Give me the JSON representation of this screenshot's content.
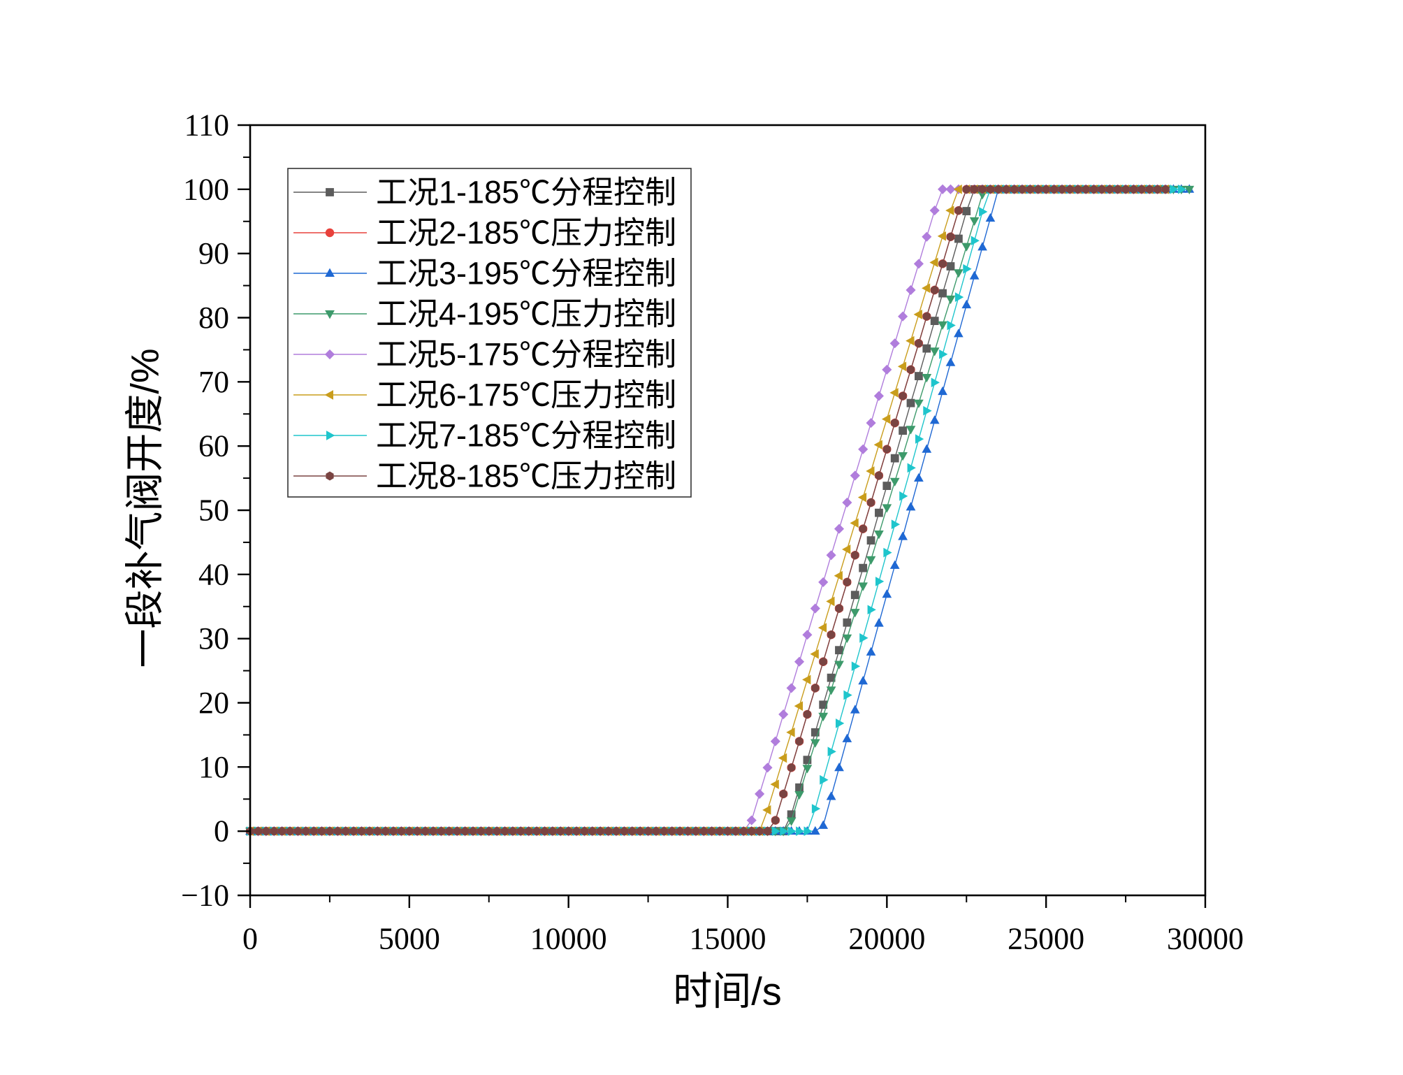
{
  "chart_data": {
    "type": "line",
    "title": "",
    "xlabel": "时间/s",
    "ylabel": "一段补气阀开度/%",
    "xlim": [
      0,
      30000
    ],
    "ylim": [
      -10,
      110
    ],
    "xticks": [
      0,
      5000,
      10000,
      15000,
      20000,
      25000,
      30000
    ],
    "xtick_labels": [
      "0",
      "5000",
      "10000",
      "15000",
      "20000",
      "25000",
      "30000"
    ],
    "yticks": [
      -10,
      0,
      10,
      20,
      30,
      40,
      50,
      60,
      70,
      80,
      90,
      100,
      110
    ],
    "ytick_labels": [
      "−10",
      "0",
      "10",
      "20",
      "30",
      "40",
      "50",
      "60",
      "70",
      "80",
      "90",
      "100",
      "110"
    ],
    "grid": false,
    "legend_position": "top-left",
    "x": [
      0,
      250,
      500,
      750,
      1000,
      1250,
      1500,
      1750,
      2000,
      2250,
      2500,
      2750,
      3000,
      3250,
      3500,
      3750,
      4000,
      4250,
      4500,
      4750,
      5000,
      5250,
      5500,
      5750,
      6000,
      6250,
      6500,
      6750,
      7000,
      7250,
      7500,
      7750,
      8000,
      8250,
      8500,
      8750,
      9000,
      9250,
      9500,
      9750,
      10000,
      10250,
      10500,
      10750,
      11000,
      11250,
      11500,
      11750,
      12000,
      12250,
      12500,
      12750,
      13000,
      13250,
      13500,
      13750,
      14000,
      14250,
      14500,
      14750,
      15000,
      15250,
      15500,
      15750,
      16000,
      16250,
      16500,
      16750,
      17000,
      17250,
      17500,
      17750,
      18000,
      18250,
      18500,
      18750,
      19000,
      19250,
      19500,
      19750,
      20000,
      20250,
      20500,
      20750,
      21000,
      21250,
      21500,
      21750,
      22000,
      22250,
      22500,
      22750,
      23000,
      23250,
      23500,
      23750,
      24000,
      24250,
      24500,
      24750,
      25000,
      25250,
      25500,
      25750,
      26000,
      26250,
      26500,
      26750,
      27000,
      27250,
      27500,
      27750,
      28000,
      28250,
      28500,
      28750,
      29000,
      29250,
      29500
    ],
    "series": [
      {
        "name": "工况1-185℃分程控制",
        "color": "#5c5c5c",
        "marker": "square",
        "values": [
          0,
          0,
          0,
          0,
          0,
          0,
          0,
          0,
          0,
          0,
          0,
          0,
          0,
          0,
          0,
          0,
          0,
          0,
          0,
          0,
          0,
          0,
          0,
          0,
          0,
          0,
          0,
          0,
          0,
          0,
          0,
          0,
          0,
          0,
          0,
          0,
          0,
          0,
          0,
          0,
          0,
          0,
          0,
          0,
          0,
          0,
          0,
          0,
          0,
          0,
          0,
          0,
          0,
          0,
          0,
          0,
          0,
          0,
          0,
          0,
          0,
          0,
          0,
          0,
          0,
          0,
          0,
          0,
          2.6,
          6.8,
          11.1,
          15.4,
          19.7,
          23.9,
          28.2,
          32.5,
          36.8,
          41.0,
          45.3,
          49.6,
          53.8,
          58.1,
          62.4,
          66.7,
          70.9,
          75.2,
          79.5,
          83.8,
          88.0,
          92.3,
          96.6,
          100,
          100,
          100,
          100,
          100,
          100,
          100,
          100,
          100,
          100,
          100,
          100,
          100,
          100,
          100,
          100,
          100,
          100,
          100,
          100,
          100,
          100,
          100,
          100,
          100,
          null,
          null,
          null
        ]
      },
      {
        "name": "工况2-185℃压力控制",
        "color": "#e8413b",
        "marker": "circle",
        "values": [
          0,
          0,
          0,
          0,
          0,
          0,
          0,
          0,
          0,
          0,
          0,
          0,
          0,
          0,
          0,
          0,
          0,
          0,
          0,
          0,
          0,
          0,
          0,
          0,
          0,
          0,
          0,
          0,
          0,
          0,
          0,
          0,
          0,
          0,
          0,
          0,
          0,
          0,
          0,
          0,
          0,
          0,
          0,
          0,
          0,
          0,
          0,
          0,
          0,
          0,
          0,
          0,
          0,
          0,
          0,
          0,
          0,
          0,
          0,
          0,
          0,
          0,
          0,
          0,
          0,
          0,
          1.7,
          5.8,
          9.9,
          14.0,
          18.2,
          22.3,
          26.4,
          30.6,
          34.7,
          38.8,
          43.0,
          47.1,
          51.2,
          55.4,
          59.5,
          63.6,
          67.8,
          71.9,
          76.0,
          80.2,
          84.3,
          88.4,
          92.6,
          96.7,
          100,
          100,
          100,
          100,
          100,
          100,
          100,
          100,
          100,
          100,
          100,
          100,
          100,
          100,
          100,
          100,
          100,
          100,
          100,
          100,
          100,
          100,
          100,
          100,
          100,
          100,
          null,
          null,
          null
        ]
      },
      {
        "name": "工况3-195℃分程控制",
        "color": "#1f68d3",
        "marker": "triangle-up",
        "values": [
          0,
          0,
          0,
          0,
          0,
          0,
          0,
          0,
          0,
          0,
          0,
          0,
          0,
          0,
          0,
          0,
          0,
          0,
          0,
          0,
          0,
          0,
          0,
          0,
          0,
          0,
          0,
          0,
          0,
          0,
          0,
          0,
          0,
          0,
          0,
          0,
          0,
          0,
          0,
          0,
          0,
          0,
          0,
          0,
          0,
          0,
          0,
          0,
          0,
          0,
          0,
          0,
          0,
          0,
          0,
          0,
          0,
          0,
          0,
          0,
          0,
          0,
          0,
          0,
          0,
          0,
          0,
          0,
          0,
          0,
          0,
          0,
          0.9,
          5.4,
          9.9,
          14.4,
          18.9,
          23.4,
          27.9,
          32.4,
          36.9,
          41.4,
          45.9,
          50.5,
          55.0,
          59.5,
          64.0,
          68.5,
          73.0,
          77.5,
          82.0,
          86.5,
          91.0,
          95.5,
          100,
          100,
          100,
          100,
          100,
          100,
          100,
          100,
          100,
          100,
          100,
          100,
          100,
          100,
          100,
          100,
          100,
          100,
          100,
          100,
          100,
          100,
          100,
          100,
          100
        ]
      },
      {
        "name": "工况4-195℃压力控制",
        "color": "#3d9a6b",
        "marker": "triangle-down",
        "values": [
          0,
          0,
          0,
          0,
          0,
          0,
          0,
          0,
          0,
          0,
          0,
          0,
          0,
          0,
          0,
          0,
          0,
          0,
          0,
          0,
          0,
          0,
          0,
          0,
          0,
          0,
          0,
          0,
          0,
          0,
          0,
          0,
          0,
          0,
          0,
          0,
          0,
          0,
          0,
          0,
          0,
          0,
          0,
          0,
          0,
          0,
          0,
          0,
          0,
          0,
          0,
          0,
          0,
          0,
          0,
          0,
          0,
          0,
          0,
          0,
          0,
          0,
          0,
          0,
          0,
          0,
          0,
          0,
          1.6,
          5.7,
          9.8,
          13.8,
          17.9,
          22.0,
          26.0,
          30.1,
          34.1,
          38.2,
          42.3,
          46.3,
          50.4,
          54.5,
          58.5,
          62.6,
          66.7,
          70.7,
          74.8,
          78.9,
          82.9,
          87.0,
          91.1,
          95.1,
          99.2,
          100,
          100,
          100,
          100,
          100,
          100,
          100,
          100,
          100,
          100,
          100,
          100,
          100,
          100,
          100,
          100,
          100,
          100,
          100,
          100,
          100,
          100,
          100,
          100,
          100,
          100
        ]
      },
      {
        "name": "工况5-175℃分程控制",
        "color": "#b07ddc",
        "marker": "diamond",
        "values": [
          0,
          0,
          0,
          0,
          0,
          0,
          0,
          0,
          0,
          0,
          0,
          0,
          0,
          0,
          0,
          0,
          0,
          0,
          0,
          0,
          0,
          0,
          0,
          0,
          0,
          0,
          0,
          0,
          0,
          0,
          0,
          0,
          0,
          0,
          0,
          0,
          0,
          0,
          0,
          0,
          0,
          0,
          0,
          0,
          0,
          0,
          0,
          0,
          0,
          0,
          0,
          0,
          0,
          0,
          0,
          0,
          0,
          0,
          0,
          0,
          0,
          0,
          0,
          1.7,
          5.8,
          9.9,
          14.0,
          18.2,
          22.3,
          26.4,
          30.6,
          34.7,
          38.8,
          43.0,
          47.1,
          51.2,
          55.4,
          59.5,
          63.6,
          67.8,
          71.9,
          76.0,
          80.2,
          84.3,
          88.4,
          92.6,
          96.7,
          100,
          100,
          100,
          100,
          100,
          100,
          100,
          100,
          100,
          100,
          100,
          100,
          100,
          100,
          100,
          100,
          100,
          100,
          100,
          100,
          100,
          100,
          100,
          100,
          100,
          100,
          100,
          100,
          100,
          null,
          null,
          null
        ]
      },
      {
        "name": "工况6-175℃压力控制",
        "color": "#c99d1c",
        "marker": "triangle-left",
        "values": [
          0,
          0,
          0,
          0,
          0,
          0,
          0,
          0,
          0,
          0,
          0,
          0,
          0,
          0,
          0,
          0,
          0,
          0,
          0,
          0,
          0,
          0,
          0,
          0,
          0,
          0,
          0,
          0,
          0,
          0,
          0,
          0,
          0,
          0,
          0,
          0,
          0,
          0,
          0,
          0,
          0,
          0,
          0,
          0,
          0,
          0,
          0,
          0,
          0,
          0,
          0,
          0,
          0,
          0,
          0,
          0,
          0,
          0,
          0,
          0,
          0,
          0,
          0,
          0,
          0,
          3.3,
          7.3,
          11.4,
          15.4,
          19.5,
          23.6,
          27.6,
          31.7,
          35.8,
          39.8,
          43.9,
          48.0,
          52.0,
          56.1,
          60.2,
          64.2,
          68.3,
          72.4,
          76.4,
          80.5,
          84.6,
          88.6,
          92.7,
          96.7,
          100,
          100,
          100,
          100,
          100,
          100,
          100,
          100,
          100,
          100,
          100,
          100,
          100,
          100,
          100,
          100,
          100,
          100,
          100,
          100,
          100,
          100,
          100,
          100,
          100,
          100,
          100,
          null,
          null,
          null
        ]
      },
      {
        "name": "工况7-185℃分程控制",
        "color": "#1fc5cc",
        "marker": "triangle-right",
        "values": [
          0,
          0,
          0,
          0,
          0,
          0,
          0,
          0,
          0,
          0,
          0,
          0,
          0,
          0,
          0,
          0,
          0,
          0,
          0,
          0,
          0,
          0,
          0,
          0,
          0,
          0,
          0,
          0,
          0,
          0,
          0,
          0,
          0,
          0,
          0,
          0,
          0,
          0,
          0,
          0,
          0,
          0,
          0,
          0,
          0,
          0,
          0,
          0,
          0,
          0,
          0,
          0,
          0,
          0,
          0,
          0,
          0,
          0,
          0,
          0,
          0,
          0,
          0,
          0,
          0,
          0,
          0,
          0,
          0,
          0,
          0,
          3.5,
          8.0,
          12.4,
          16.8,
          21.2,
          25.7,
          30.1,
          34.5,
          38.9,
          43.4,
          47.8,
          52.2,
          56.6,
          61.1,
          65.5,
          69.9,
          74.3,
          78.8,
          83.2,
          87.6,
          92.0,
          96.5,
          100,
          100,
          100,
          100,
          100,
          100,
          100,
          100,
          100,
          100,
          100,
          100,
          100,
          100,
          100,
          100,
          100,
          100,
          100,
          100,
          100,
          100,
          100,
          100,
          100,
          null
        ]
      },
      {
        "name": "工况8-185℃压力控制",
        "color": "#7a4442",
        "marker": "hexagon",
        "values": [
          0,
          0,
          0,
          0,
          0,
          0,
          0,
          0,
          0,
          0,
          0,
          0,
          0,
          0,
          0,
          0,
          0,
          0,
          0,
          0,
          0,
          0,
          0,
          0,
          0,
          0,
          0,
          0,
          0,
          0,
          0,
          0,
          0,
          0,
          0,
          0,
          0,
          0,
          0,
          0,
          0,
          0,
          0,
          0,
          0,
          0,
          0,
          0,
          0,
          0,
          0,
          0,
          0,
          0,
          0,
          0,
          0,
          0,
          0,
          0,
          0,
          0,
          0,
          0,
          0,
          0,
          1.7,
          5.8,
          9.9,
          14.0,
          18.2,
          22.3,
          26.4,
          30.6,
          34.7,
          38.8,
          43.0,
          47.1,
          51.2,
          55.4,
          59.5,
          63.6,
          67.8,
          71.9,
          76.0,
          80.2,
          84.3,
          88.4,
          92.6,
          96.7,
          100,
          100,
          100,
          100,
          100,
          100,
          100,
          100,
          100,
          100,
          100,
          100,
          100,
          100,
          100,
          100,
          100,
          100,
          100,
          100,
          100,
          100,
          100,
          100,
          100,
          100,
          null,
          null,
          null
        ]
      }
    ]
  }
}
